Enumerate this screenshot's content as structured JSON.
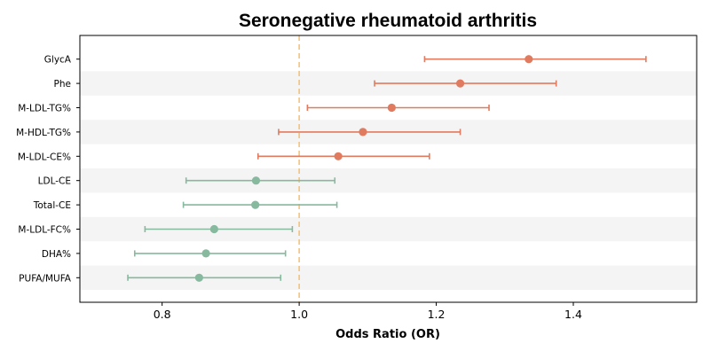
{
  "chart_data": {
    "type": "forest",
    "title": "Seronegative rheumatoid arthritis",
    "xlabel": "Odds Ratio (OR)",
    "ylabel": "",
    "xlim": [
      0.68,
      1.58
    ],
    "xticks": [
      "0.8",
      "1.0",
      "1.2",
      "1.4"
    ],
    "reference_line": 1.0,
    "grid": false,
    "colors": {
      "risk": "#e07b5f",
      "protective": "#86b99d",
      "reference": "#f5c27a",
      "band": "#f4f4f4"
    },
    "points": [
      {
        "label": "GlycA",
        "or": 1.335,
        "lower": 1.183,
        "upper": 1.506,
        "group": "risk"
      },
      {
        "label": "Phe",
        "or": 1.235,
        "lower": 1.11,
        "upper": 1.375,
        "group": "risk"
      },
      {
        "label": "M-LDL-TG%",
        "or": 1.135,
        "lower": 1.012,
        "upper": 1.277,
        "group": "risk"
      },
      {
        "label": "M-HDL-TG%",
        "or": 1.093,
        "lower": 0.97,
        "upper": 1.235,
        "group": "risk"
      },
      {
        "label": "M-LDL-CE%",
        "or": 1.057,
        "lower": 0.94,
        "upper": 1.19,
        "group": "risk"
      },
      {
        "label": "LDL-CE",
        "or": 0.937,
        "lower": 0.835,
        "upper": 1.052,
        "group": "protective"
      },
      {
        "label": "Total-CE",
        "or": 0.936,
        "lower": 0.831,
        "upper": 1.055,
        "group": "protective"
      },
      {
        "label": "M-LDL-FC%",
        "or": 0.876,
        "lower": 0.775,
        "upper": 0.99,
        "group": "protective"
      },
      {
        "label": "DHA%",
        "or": 0.864,
        "lower": 0.76,
        "upper": 0.98,
        "group": "protective"
      },
      {
        "label": "PUFA/MUFA",
        "or": 0.854,
        "lower": 0.75,
        "upper": 0.973,
        "group": "protective"
      }
    ]
  }
}
